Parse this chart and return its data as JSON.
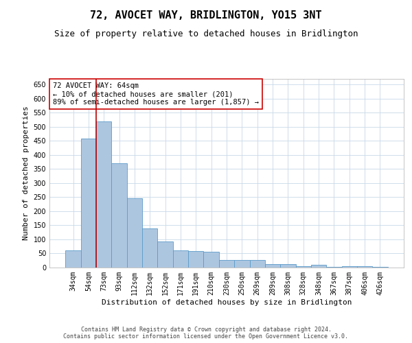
{
  "title": "72, AVOCET WAY, BRIDLINGTON, YO15 3NT",
  "subtitle": "Size of property relative to detached houses in Bridlington",
  "xlabel": "Distribution of detached houses by size in Bridlington",
  "ylabel": "Number of detached properties",
  "categories": [
    "34sqm",
    "54sqm",
    "73sqm",
    "93sqm",
    "112sqm",
    "132sqm",
    "152sqm",
    "171sqm",
    "191sqm",
    "210sqm",
    "230sqm",
    "250sqm",
    "269sqm",
    "289sqm",
    "308sqm",
    "328sqm",
    "348sqm",
    "367sqm",
    "387sqm",
    "406sqm",
    "426sqm"
  ],
  "values": [
    62,
    458,
    520,
    370,
    247,
    140,
    93,
    62,
    58,
    55,
    26,
    26,
    26,
    11,
    12,
    5,
    9,
    3,
    4,
    4,
    3
  ],
  "bar_color": "#adc6e0",
  "bar_edge_color": "#5a9ac8",
  "red_line_x": 1.5,
  "annotation_text": "72 AVOCET WAY: 64sqm\n← 10% of detached houses are smaller (201)\n89% of semi-detached houses are larger (1,857) →",
  "annotation_box_color": "#ffffff",
  "annotation_box_edge_color": "#cc0000",
  "ylim": [
    0,
    670
  ],
  "yticks": [
    0,
    50,
    100,
    150,
    200,
    250,
    300,
    350,
    400,
    450,
    500,
    550,
    600,
    650
  ],
  "footer_line1": "Contains HM Land Registry data © Crown copyright and database right 2024.",
  "footer_line2": "Contains public sector information licensed under the Open Government Licence v3.0.",
  "bg_color": "#ffffff",
  "grid_color": "#c8d8e8",
  "title_fontsize": 11,
  "subtitle_fontsize": 9,
  "tick_fontsize": 7,
  "axis_label_fontsize": 8,
  "annotation_fontsize": 7.5,
  "footer_fontsize": 6
}
